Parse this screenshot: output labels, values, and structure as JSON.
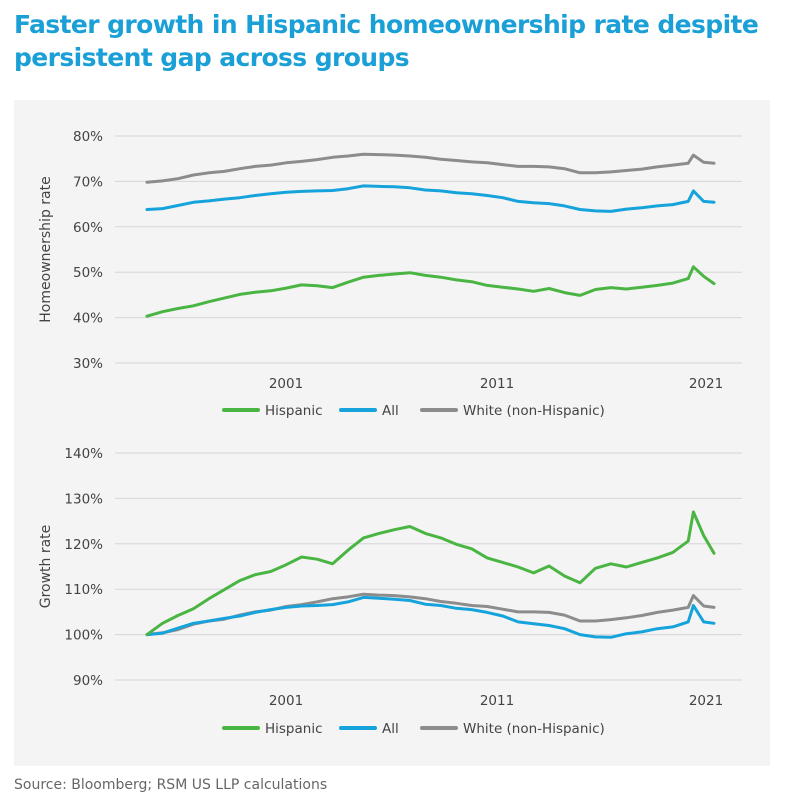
{
  "title": "Faster growth in Hispanic homeownership rate despite persistent gap across groups",
  "source": "Source: Bloomberg; RSM US LLP calculations",
  "colors": {
    "Hispanic": "#4ab543",
    "All": "#16a3dc",
    "White (non-Hispanic)": "#8c8c8c",
    "title": "#1a9fd6",
    "panel": "#f4f4f4"
  },
  "chart_data": [
    {
      "type": "line",
      "ylabel": "Homeownership rate",
      "yticks": [
        "80%",
        "70%",
        "60%",
        "50%",
        "40%",
        "30%"
      ],
      "ylim": [
        30,
        80
      ],
      "xticks": [
        "2001",
        "2011",
        "2021"
      ],
      "xlim": [
        1994.0,
        2021.5
      ],
      "legend_position": "bottom-center",
      "grid": "horizontal",
      "series": [
        {
          "name": "Hispanic",
          "x": [
            1994.0,
            1994.75,
            1995.5,
            1996.25,
            1997.0,
            1997.75,
            1998.5,
            1999.25,
            2000.0,
            2000.75,
            2001.5,
            2002.25,
            2003.0,
            2003.75,
            2004.5,
            2005.25,
            2006.0,
            2006.75,
            2007.5,
            2008.25,
            2009.0,
            2009.75,
            2010.5,
            2011.25,
            2012.0,
            2012.75,
            2013.5,
            2014.25,
            2015.0,
            2015.75,
            2016.5,
            2017.25,
            2018.0,
            2018.75,
            2019.5,
            2020.25,
            2020.5,
            2021.0,
            2021.5
          ],
          "y": [
            40.3,
            41.3,
            42.0,
            42.6,
            43.5,
            44.3,
            45.1,
            45.6,
            45.9,
            46.5,
            47.2,
            47.0,
            46.6,
            47.8,
            48.9,
            49.3,
            49.6,
            49.9,
            49.3,
            48.9,
            48.3,
            47.9,
            47.1,
            46.7,
            46.3,
            45.8,
            46.4,
            45.5,
            44.9,
            46.2,
            46.6,
            46.3,
            46.7,
            47.1,
            47.6,
            48.6,
            51.2,
            49.1,
            47.5
          ]
        },
        {
          "name": "All",
          "x": [
            1994.0,
            1994.75,
            1995.5,
            1996.25,
            1997.0,
            1997.75,
            1998.5,
            1999.25,
            2000.0,
            2000.75,
            2001.5,
            2002.25,
            2003.0,
            2003.75,
            2004.5,
            2005.25,
            2006.0,
            2006.75,
            2007.5,
            2008.25,
            2009.0,
            2009.75,
            2010.5,
            2011.25,
            2012.0,
            2012.75,
            2013.5,
            2014.25,
            2015.0,
            2015.75,
            2016.5,
            2017.25,
            2018.0,
            2018.75,
            2019.5,
            2020.25,
            2020.5,
            2021.0,
            2021.5
          ],
          "y": [
            63.8,
            64.0,
            64.7,
            65.4,
            65.7,
            66.1,
            66.4,
            66.9,
            67.3,
            67.6,
            67.8,
            67.9,
            68.0,
            68.4,
            69.0,
            68.9,
            68.8,
            68.6,
            68.1,
            67.9,
            67.5,
            67.3,
            66.9,
            66.4,
            65.6,
            65.3,
            65.1,
            64.6,
            63.8,
            63.5,
            63.4,
            63.9,
            64.2,
            64.6,
            64.9,
            65.6,
            67.9,
            65.6,
            65.4
          ]
        },
        {
          "name": "White (non-Hispanic)",
          "x": [
            1994.0,
            1994.75,
            1995.5,
            1996.25,
            1997.0,
            1997.75,
            1998.5,
            1999.25,
            2000.0,
            2000.75,
            2001.5,
            2002.25,
            2003.0,
            2003.75,
            2004.5,
            2005.25,
            2006.0,
            2006.75,
            2007.5,
            2008.25,
            2009.0,
            2009.75,
            2010.5,
            2011.25,
            2012.0,
            2012.75,
            2013.5,
            2014.25,
            2015.0,
            2015.75,
            2016.5,
            2017.25,
            2018.0,
            2018.75,
            2019.5,
            2020.25,
            2020.5,
            2021.0,
            2021.5
          ],
          "y": [
            69.8,
            70.1,
            70.6,
            71.4,
            71.9,
            72.2,
            72.8,
            73.3,
            73.6,
            74.1,
            74.4,
            74.8,
            75.3,
            75.6,
            76.0,
            75.9,
            75.8,
            75.6,
            75.3,
            74.9,
            74.6,
            74.3,
            74.1,
            73.7,
            73.3,
            73.3,
            73.2,
            72.8,
            71.9,
            71.9,
            72.1,
            72.4,
            72.7,
            73.2,
            73.6,
            74.0,
            75.8,
            74.2,
            74.0
          ]
        }
      ]
    },
    {
      "type": "line",
      "ylabel": "Growth rate",
      "yticks": [
        "140%",
        "130%",
        "120%",
        "110%",
        "100%",
        "90%"
      ],
      "ylim": [
        90,
        140
      ],
      "xticks": [
        "2001",
        "2011",
        "2021"
      ],
      "xlim": [
        1994.0,
        2021.5
      ],
      "legend_position": "bottom-center",
      "grid": "horizontal",
      "series": [
        {
          "name": "Hispanic",
          "x": [
            1994.0,
            1994.75,
            1995.5,
            1996.25,
            1997.0,
            1997.75,
            1998.5,
            1999.25,
            2000.0,
            2000.75,
            2001.5,
            2002.25,
            2003.0,
            2003.75,
            2004.5,
            2005.25,
            2006.0,
            2006.75,
            2007.5,
            2008.25,
            2009.0,
            2009.75,
            2010.5,
            2011.25,
            2012.0,
            2012.75,
            2013.5,
            2014.25,
            2015.0,
            2015.75,
            2016.5,
            2017.25,
            2018.0,
            2018.75,
            2019.5,
            2020.25,
            2020.5,
            2021.0,
            2021.5
          ],
          "y": [
            100.0,
            102.5,
            104.2,
            105.7,
            107.9,
            109.9,
            111.9,
            113.2,
            113.9,
            115.4,
            117.1,
            116.6,
            115.6,
            118.6,
            121.3,
            122.3,
            123.1,
            123.8,
            122.3,
            121.3,
            119.9,
            118.9,
            116.9,
            115.9,
            114.9,
            113.6,
            115.1,
            112.9,
            111.4,
            114.6,
            115.6,
            114.9,
            115.9,
            116.9,
            118.1,
            120.6,
            127.0,
            121.8,
            117.9
          ]
        },
        {
          "name": "All",
          "x": [
            1994.0,
            1994.75,
            1995.5,
            1996.25,
            1997.0,
            1997.75,
            1998.5,
            1999.25,
            2000.0,
            2000.75,
            2001.5,
            2002.25,
            2003.0,
            2003.75,
            2004.5,
            2005.25,
            2006.0,
            2006.75,
            2007.5,
            2008.25,
            2009.0,
            2009.75,
            2010.5,
            2011.25,
            2012.0,
            2012.75,
            2013.5,
            2014.25,
            2015.0,
            2015.75,
            2016.5,
            2017.25,
            2018.0,
            2018.75,
            2019.5,
            2020.25,
            2020.5,
            2021.0,
            2021.5
          ],
          "y": [
            100.0,
            100.3,
            101.4,
            102.5,
            103.0,
            103.6,
            104.1,
            104.9,
            105.5,
            106.0,
            106.3,
            106.4,
            106.6,
            107.2,
            108.2,
            108.0,
            107.8,
            107.5,
            106.7,
            106.4,
            105.8,
            105.5,
            104.9,
            104.1,
            102.8,
            102.4,
            102.0,
            101.3,
            100.0,
            99.5,
            99.4,
            100.2,
            100.6,
            101.3,
            101.7,
            102.8,
            106.4,
            102.8,
            102.5
          ]
        },
        {
          "name": "White (non-Hispanic)",
          "x": [
            1994.0,
            1994.75,
            1995.5,
            1996.25,
            1997.0,
            1997.75,
            1998.5,
            1999.25,
            2000.0,
            2000.75,
            2001.5,
            2002.25,
            2003.0,
            2003.75,
            2004.5,
            2005.25,
            2006.0,
            2006.75,
            2007.5,
            2008.25,
            2009.0,
            2009.75,
            2010.5,
            2011.25,
            2012.0,
            2012.75,
            2013.5,
            2014.25,
            2015.0,
            2015.75,
            2016.5,
            2017.25,
            2018.0,
            2018.75,
            2019.5,
            2020.25,
            2020.5,
            2021.0,
            2021.5
          ],
          "y": [
            100.0,
            100.4,
            101.1,
            102.3,
            103.0,
            103.4,
            104.3,
            105.0,
            105.4,
            106.2,
            106.6,
            107.2,
            107.9,
            108.3,
            108.9,
            108.7,
            108.6,
            108.3,
            107.9,
            107.3,
            106.9,
            106.4,
            106.2,
            105.6,
            105.0,
            105.0,
            104.9,
            104.3,
            103.0,
            103.0,
            103.3,
            103.7,
            104.2,
            104.9,
            105.4,
            106.0,
            108.6,
            106.3,
            106.0
          ]
        }
      ]
    }
  ]
}
